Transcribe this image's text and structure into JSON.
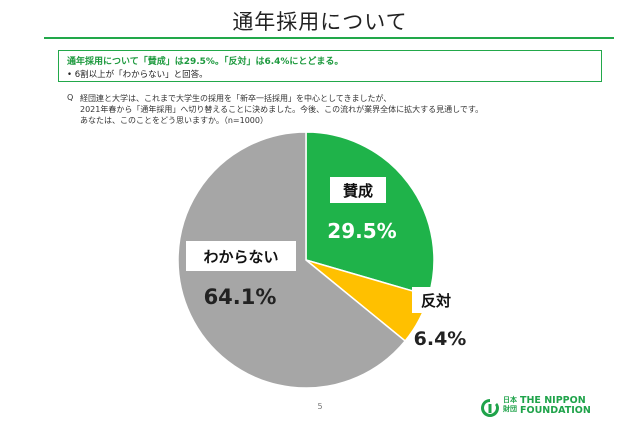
{
  "header": {
    "title": "通年採用について"
  },
  "summary": {
    "headline": "通年採用について「賛成」は29.5%。「反対」は6.4%にとどまる。",
    "bullet": "• 6割以上が「わからない」と回答。"
  },
  "question": {
    "label": "Q",
    "lines": [
      "経団連と大学は、これまで大学生の採用を「新卒一括採用」を中心としてきましたが、",
      "2021年春から「通年採用」へ切り替えることに決めました。今後、この流れが業界全体に拡大する見通しです。",
      "あなたは、このことをどう思いますか。（n=1000）"
    ]
  },
  "chart_data": {
    "type": "pie",
    "slices": [
      {
        "label": "賛成",
        "value": 29.5,
        "value_label": "29.5%",
        "color": "#1fb34a"
      },
      {
        "label": "反対",
        "value": 6.4,
        "value_label": "6.4%",
        "color": "#ffc000"
      },
      {
        "label": "わからない",
        "value": 64.1,
        "value_label": "64.1%",
        "color": "#a6a6a6"
      }
    ],
    "start": "12 o'clock",
    "direction": "clockwise"
  },
  "footer": {
    "page_number": "5",
    "logo_cjk": "日本財団",
    "logo_text_line1": "THE NIPPON",
    "logo_text_line2": "FOUNDATION",
    "logo_color": "#1fa34a"
  }
}
